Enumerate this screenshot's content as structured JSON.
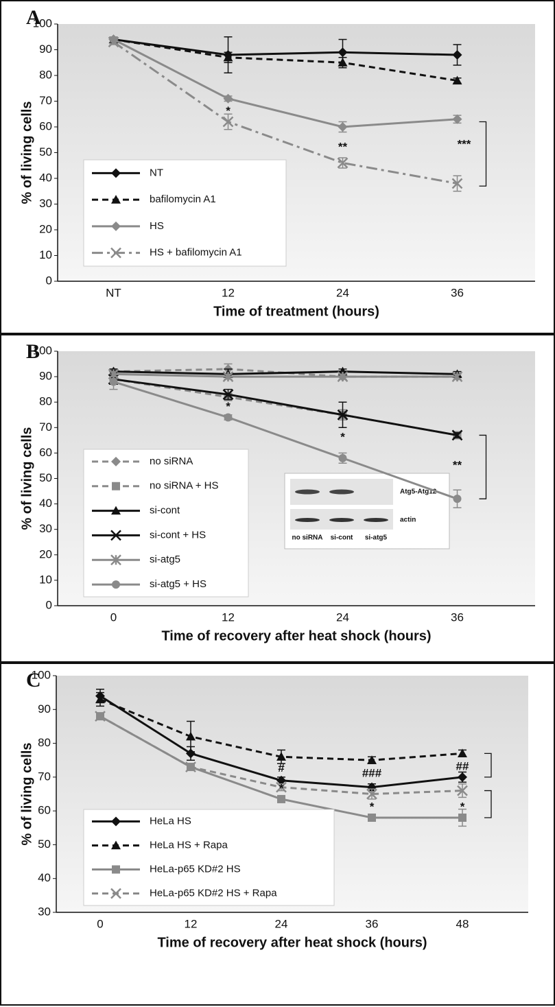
{
  "chart_data": [
    {
      "type": "line",
      "panel": "A",
      "x_label": "Time of treatment (hours)",
      "y_label": "% of living cells",
      "categories": [
        "NT",
        "12",
        "24",
        "36"
      ],
      "ylim": [
        0,
        100
      ],
      "yticks": [
        0,
        10,
        20,
        30,
        40,
        50,
        60,
        70,
        80,
        90,
        100
      ],
      "grid": false,
      "series": [
        {
          "name": "NT",
          "color": "#111111",
          "line_style": "solid",
          "marker": "diamond",
          "values": [
            94,
            88,
            89,
            88
          ],
          "errors": [
            1,
            7,
            5,
            4
          ]
        },
        {
          "name": "bafilomycin A1",
          "color": "#111111",
          "line_style": "dashed",
          "marker": "triangle",
          "values": [
            94,
            87,
            85,
            78
          ],
          "errors": [
            1,
            2,
            2,
            1
          ]
        },
        {
          "name": "HS",
          "color": "#8a8a8a",
          "line_style": "solid",
          "marker": "diamond",
          "values": [
            94,
            71,
            60,
            63
          ],
          "errors": [
            1,
            1,
            2,
            1.5
          ]
        },
        {
          "name": "HS + bafilomycin A1",
          "color": "#8a8a8a",
          "line_style": "dashdot",
          "marker": "x",
          "values": [
            93,
            62,
            46,
            38
          ],
          "errors": [
            1,
            3,
            2,
            3
          ]
        }
      ],
      "annotations": [
        "*",
        "**",
        "***"
      ]
    },
    {
      "type": "line",
      "panel": "B",
      "x_label": "Time of recovery after heat shock (hours)",
      "y_label": "% of living cells",
      "categories": [
        "0",
        "12",
        "24",
        "36"
      ],
      "ylim": [
        0,
        100
      ],
      "yticks": [
        0,
        10,
        20,
        30,
        40,
        50,
        60,
        70,
        80,
        90,
        100
      ],
      "grid": false,
      "series": [
        {
          "name": "no siRNA",
          "color": "#8a8a8a",
          "line_style": "dashed",
          "marker": "diamond",
          "values": [
            92,
            93,
            90,
            90
          ],
          "errors": [
            1,
            2,
            1,
            1
          ]
        },
        {
          "name": "no siRNA + HS",
          "color": "#8a8a8a",
          "line_style": "dashed",
          "marker": "square",
          "values": [
            89,
            82,
            75,
            67
          ],
          "errors": [
            2,
            1,
            2,
            1
          ]
        },
        {
          "name": "si-cont",
          "color": "#111111",
          "line_style": "solid",
          "marker": "triangle",
          "values": [
            92,
            91,
            92,
            91
          ],
          "errors": [
            1,
            2,
            1,
            1
          ]
        },
        {
          "name": "si-cont + HS",
          "color": "#111111",
          "line_style": "solid",
          "marker": "x",
          "values": [
            89,
            83,
            75,
            67
          ],
          "errors": [
            2,
            2,
            5,
            1
          ]
        },
        {
          "name": "si-atg5",
          "color": "#8a8a8a",
          "line_style": "solid",
          "marker": "asterisk",
          "values": [
            91,
            90,
            90,
            90
          ],
          "errors": [
            1,
            1,
            1,
            1
          ]
        },
        {
          "name": "si-atg5 + HS",
          "color": "#8a8a8a",
          "line_style": "solid",
          "marker": "circle",
          "values": [
            88,
            74,
            58,
            42
          ],
          "errors": [
            3,
            1,
            2,
            3.5
          ]
        }
      ],
      "annotations": [
        "*",
        "*",
        "**"
      ],
      "inset": {
        "bands": [
          "Atg5-Atg12",
          "actin"
        ],
        "lanes": [
          "no siRNA",
          "si-cont",
          "si-atg5"
        ]
      }
    },
    {
      "type": "line",
      "panel": "C",
      "x_label": "Time of recovery after heat shock (hours)",
      "y_label": "% of living cells",
      "categories": [
        "0",
        "12",
        "24",
        "36",
        "48"
      ],
      "ylim": [
        30,
        100
      ],
      "yticks": [
        30,
        40,
        50,
        60,
        70,
        80,
        90,
        100
      ],
      "grid": false,
      "series": [
        {
          "name": "HeLa HS",
          "color": "#111111",
          "line_style": "solid",
          "marker": "diamond",
          "values": [
            94,
            77,
            69,
            67,
            70
          ],
          "errors": [
            2,
            2,
            1,
            1,
            1.5
          ]
        },
        {
          "name": "HeLa HS + Rapa",
          "color": "#111111",
          "line_style": "dashed",
          "marker": "triangle",
          "values": [
            93,
            82,
            76,
            75,
            77
          ],
          "errors": [
            2,
            4.5,
            2,
            1,
            1
          ]
        },
        {
          "name": "HeLa-p65 KD#2 HS",
          "color": "#8a8a8a",
          "line_style": "solid",
          "marker": "square",
          "values": [
            88,
            73,
            63.5,
            58,
            58
          ],
          "errors": [
            1,
            1,
            1,
            1,
            2.5
          ]
        },
        {
          "name": "HeLa-p65 KD#2 HS + Rapa",
          "color": "#8a8a8a",
          "line_style": "dashed",
          "marker": "x",
          "values": [
            88,
            73,
            67,
            65,
            66
          ],
          "errors": [
            1,
            1,
            1,
            1.5,
            2
          ]
        }
      ],
      "annotations": [
        "#",
        "*",
        "###",
        "*",
        "##",
        "*"
      ]
    }
  ]
}
